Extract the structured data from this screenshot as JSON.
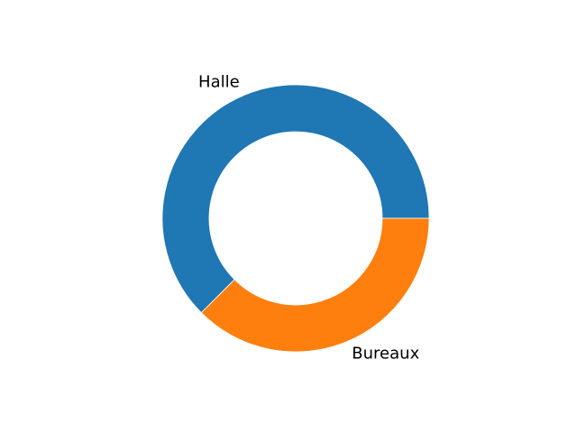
{
  "chart_data": {
    "type": "pie",
    "variant": "donut",
    "start_angle_deg": 0,
    "direction": "counterclockwise",
    "slices": [
      {
        "label": "Halle",
        "value": 62.5,
        "color": "#1f77b4"
      },
      {
        "label": "Bureaux",
        "value": 37.5,
        "color": "#ff7f0e"
      }
    ]
  }
}
